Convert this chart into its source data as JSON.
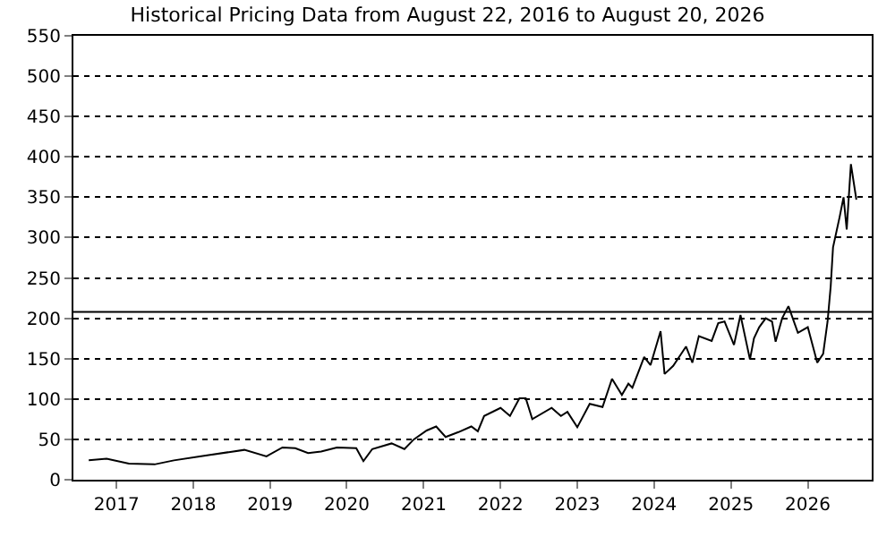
{
  "chart_data": {
    "type": "line",
    "title": "Historical Pricing Data from August 22, 2016 to August 20, 2026",
    "x": [
      "2016-08-22",
      "2016-11-15",
      "2017-03-01",
      "2017-07-01",
      "2017-10-01",
      "2018-03-01",
      "2018-09-01",
      "2018-12-15",
      "2019-03-01",
      "2019-05-01",
      "2019-07-01",
      "2019-09-01",
      "2019-11-15",
      "2020-02-15",
      "2020-03-20",
      "2020-05-01",
      "2020-08-01",
      "2020-10-01",
      "2020-11-15",
      "2021-01-15",
      "2021-03-01",
      "2021-04-15",
      "2021-06-15",
      "2021-08-15",
      "2021-09-15",
      "2021-10-15",
      "2022-01-01",
      "2022-02-15",
      "2022-04-01",
      "2022-05-01",
      "2022-06-01",
      "2022-09-01",
      "2022-10-15",
      "2022-11-15",
      "2023-01-01",
      "2023-03-01",
      "2023-05-01",
      "2023-06-15",
      "2023-08-01",
      "2023-09-01",
      "2023-09-20",
      "2023-10-15",
      "2023-11-15",
      "2023-12-15",
      "2024-02-01",
      "2024-02-20",
      "2024-04-01",
      "2024-06-01",
      "2024-07-01",
      "2024-08-01",
      "2024-10-01",
      "2024-11-01",
      "2024-12-01",
      "2025-01-15",
      "2025-02-15",
      "2025-04-01",
      "2025-04-20",
      "2025-05-15",
      "2025-06-15",
      "2025-07-15",
      "2025-08-01",
      "2025-09-01",
      "2025-10-01",
      "2025-11-15",
      "2026-01-01",
      "2026-02-15",
      "2026-03-15",
      "2026-04-05",
      "2026-04-20",
      "2026-05-01",
      "2026-06-01",
      "2026-06-20",
      "2026-07-05",
      "2026-07-25",
      "2026-08-20"
    ],
    "series": [
      {
        "color": "#000000",
        "values": [
          24,
          26,
          20,
          19,
          24,
          30,
          37,
          29,
          40,
          39,
          33,
          35,
          40,
          39,
          23,
          38,
          45,
          38,
          50,
          61,
          66,
          53,
          59,
          66,
          60,
          79,
          89,
          79,
          101,
          101,
          75,
          89,
          79,
          84,
          65,
          94,
          90,
          125,
          105,
          119,
          114,
          131,
          152,
          142,
          184,
          131,
          141,
          165,
          145,
          178,
          172,
          194,
          196,
          167,
          204,
          149,
          175,
          189,
          200,
          196,
          171,
          200,
          215,
          182,
          189,
          145,
          156,
          196,
          240,
          288,
          325,
          350,
          310,
          391,
          347
        ]
      }
    ],
    "xlim": [
      "2016-06-10",
      "2026-11-01"
    ],
    "xticks": [
      "2017",
      "2018",
      "2019",
      "2020",
      "2021",
      "2022",
      "2023",
      "2024",
      "2025",
      "2026"
    ],
    "ylim": [
      0,
      550
    ],
    "yticks": [
      0,
      50,
      100,
      150,
      200,
      250,
      300,
      350,
      400,
      450,
      500,
      550
    ],
    "grid": "y",
    "marker": "none",
    "line_style": "solid",
    "ref_lines": [
      {
        "axis": "y",
        "value": 208,
        "color": "#000000",
        "line_style": "solid"
      }
    ]
  }
}
